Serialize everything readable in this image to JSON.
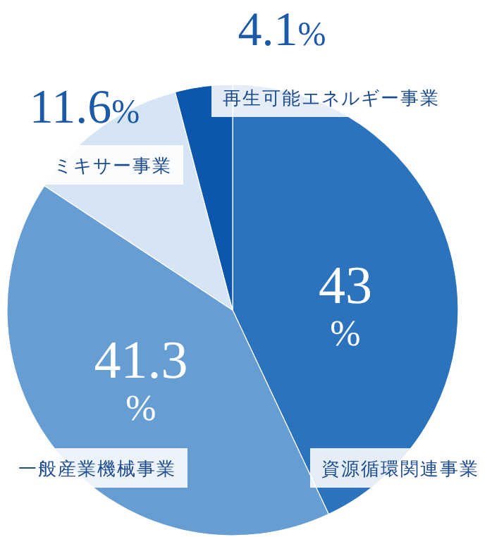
{
  "chart_data": {
    "type": "pie",
    "categories": [
      "資源循環関連事業",
      "一般産業機械事業",
      "ミキサー事業",
      "再生可能エネルギー事業"
    ],
    "values": [
      43,
      41.3,
      11.6,
      4.1
    ],
    "colors": [
      "#2c73bd",
      "#669dd2",
      "#d6e5f4",
      "#0d56ad"
    ],
    "value_labels": [
      "43%",
      "41.3%",
      "11.6%",
      "4.1%"
    ]
  }
}
